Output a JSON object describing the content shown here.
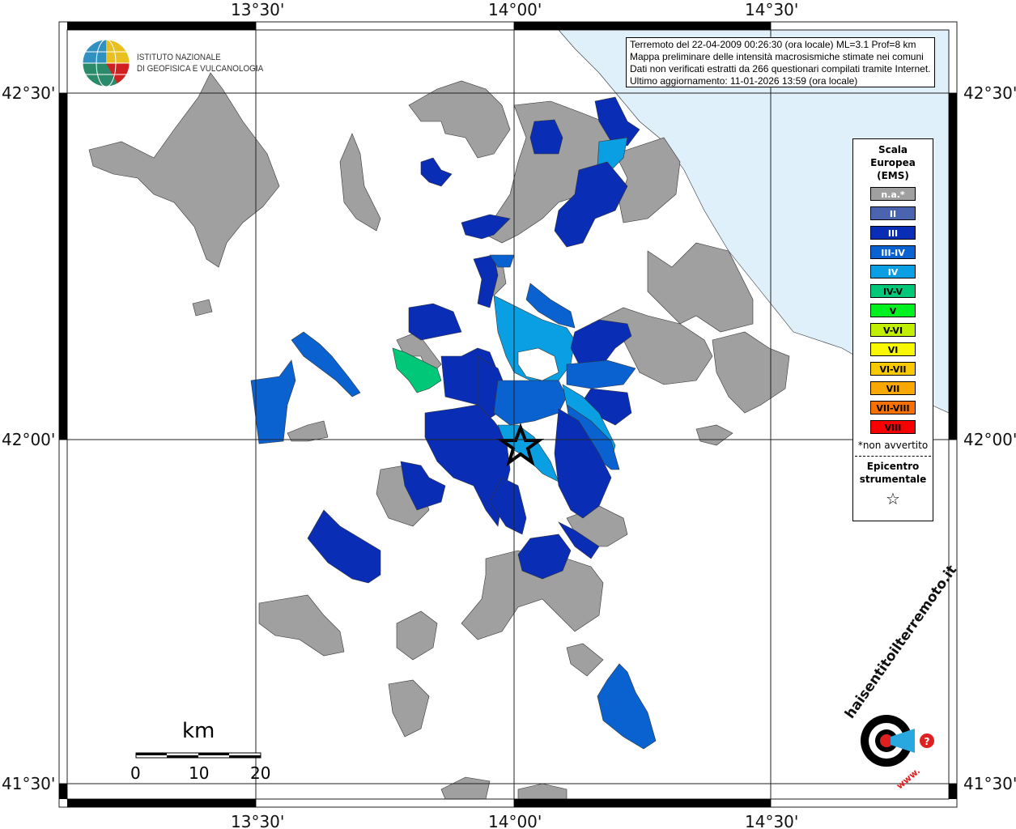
{
  "axes": {
    "lon_labels": [
      "13°30'",
      "14°00'",
      "14°30'"
    ],
    "lat_labels": [
      "42°30'",
      "42°00'",
      "41°30'"
    ]
  },
  "logo": {
    "line1": "ISTITUTO NAZIONALE",
    "line2": "DI GEOFISICA E VULCANOLOGIA",
    "site": "haisentitoilterremoto.it",
    "site_prefix": "www."
  },
  "info": {
    "line1": "Terremoto del 22-04-2009 00:26:30 (ora locale) ML=3.1 Prof=8 km",
    "line2": "Mappa preliminare delle intensità macrosismiche stimate nei comuni",
    "line3": "Dati non verificati estratti da 266 questionari compilati tramite Internet.",
    "line4": "Ultimo aggiornamento: 11-01-2026 13:59 (ora locale)"
  },
  "legend": {
    "title": [
      "Scala",
      "Europea",
      "(EMS)"
    ],
    "classes": [
      {
        "label": "n.a.*",
        "color": "#a0a0a0",
        "text": "#fff"
      },
      {
        "label": "II",
        "color": "#4a64b0",
        "text": "#fff"
      },
      {
        "label": "III",
        "color": "#0a2db5",
        "text": "#fff"
      },
      {
        "label": "III-IV",
        "color": "#0a62d0",
        "text": "#fff"
      },
      {
        "label": "IV",
        "color": "#0a9fe3",
        "text": "#fff"
      },
      {
        "label": "IV-V",
        "color": "#00c878",
        "text": "#000"
      },
      {
        "label": "V",
        "color": "#00f020",
        "text": "#000"
      },
      {
        "label": "V-VI",
        "color": "#c0f000",
        "text": "#000"
      },
      {
        "label": "VI",
        "color": "#f8f800",
        "text": "#000"
      },
      {
        "label": "VI-VII",
        "color": "#f8c800",
        "text": "#000"
      },
      {
        "label": "VII",
        "color": "#f8a800",
        "text": "#000"
      },
      {
        "label": "VII-VIII",
        "color": "#f87000",
        "text": "#000"
      },
      {
        "label": "VIII",
        "color": "#f80000",
        "text": "#000"
      }
    ],
    "note": "*non avvertito",
    "epicentre_title": [
      "Epicentro",
      "strumentale"
    ],
    "epicentre_symbol": "☆"
  },
  "scale": {
    "unit": "km",
    "ticks": [
      "0",
      "10",
      "20"
    ]
  },
  "colors": {
    "sea": "#dff0fb",
    "na": "#a0a0a0",
    "III": "#0a2db5",
    "III-IV": "#0a62d0",
    "IV": "#0a9fe3",
    "IV-V": "#00c878"
  }
}
